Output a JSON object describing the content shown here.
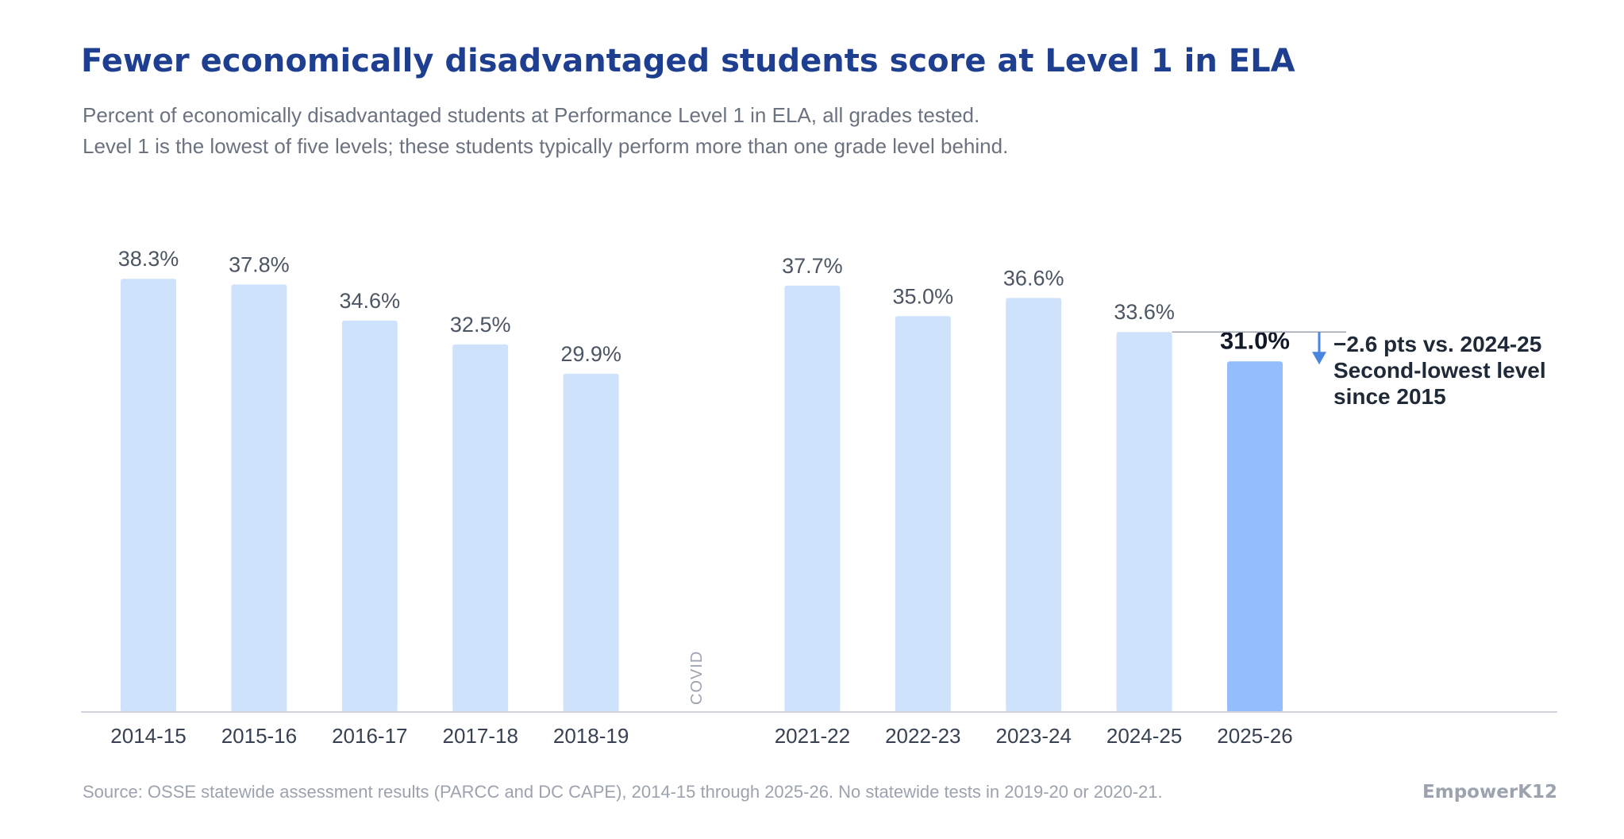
{
  "title": "Fewer economically disadvantaged students score at Level 1 in ELA",
  "subtitle_lines": [
    "Percent of economically disadvantaged students at Performance Level 1 in ELA, all grades tested.",
    "Level 1 is the lowest of five levels; these students typically perform more than one grade level behind."
  ],
  "chart_data": {
    "type": "bar",
    "categories": [
      "2014-15",
      "2015-16",
      "2016-17",
      "2017-18",
      "2018-19",
      "",
      "2021-22",
      "2022-23",
      "2023-24",
      "2024-25",
      "2025-26"
    ],
    "values": [
      38.3,
      37.8,
      34.6,
      32.5,
      29.9,
      null,
      37.7,
      35.0,
      36.6,
      33.6,
      31.0
    ],
    "data_labels": [
      "38.3%",
      "37.8%",
      "34.6%",
      "32.5%",
      "29.9%",
      "",
      "37.7%",
      "35.0%",
      "36.6%",
      "33.6%",
      "31.0%"
    ],
    "ylim": [
      0,
      40
    ],
    "highlight_index": 10,
    "gap_label": "COVID",
    "gap_index": 5,
    "grid": false,
    "annotation": {
      "lines": [
        "−2.6 pts vs. 2024-25",
        "Second-lowest level",
        "since 2015"
      ]
    }
  },
  "colors": {
    "bar": "#cfe2fc",
    "bar_highlight": "#93bdfb",
    "arrow": "#4a86e0",
    "baseline": "#d1d5db",
    "connector": "#9ca3af"
  },
  "source": "Source: OSSE statewide assessment results (PARCC and DC CAPE), 2014-15 through 2025-26. No statewide tests in 2019-20 or 2020-21.",
  "brand": "EmpowerK12"
}
